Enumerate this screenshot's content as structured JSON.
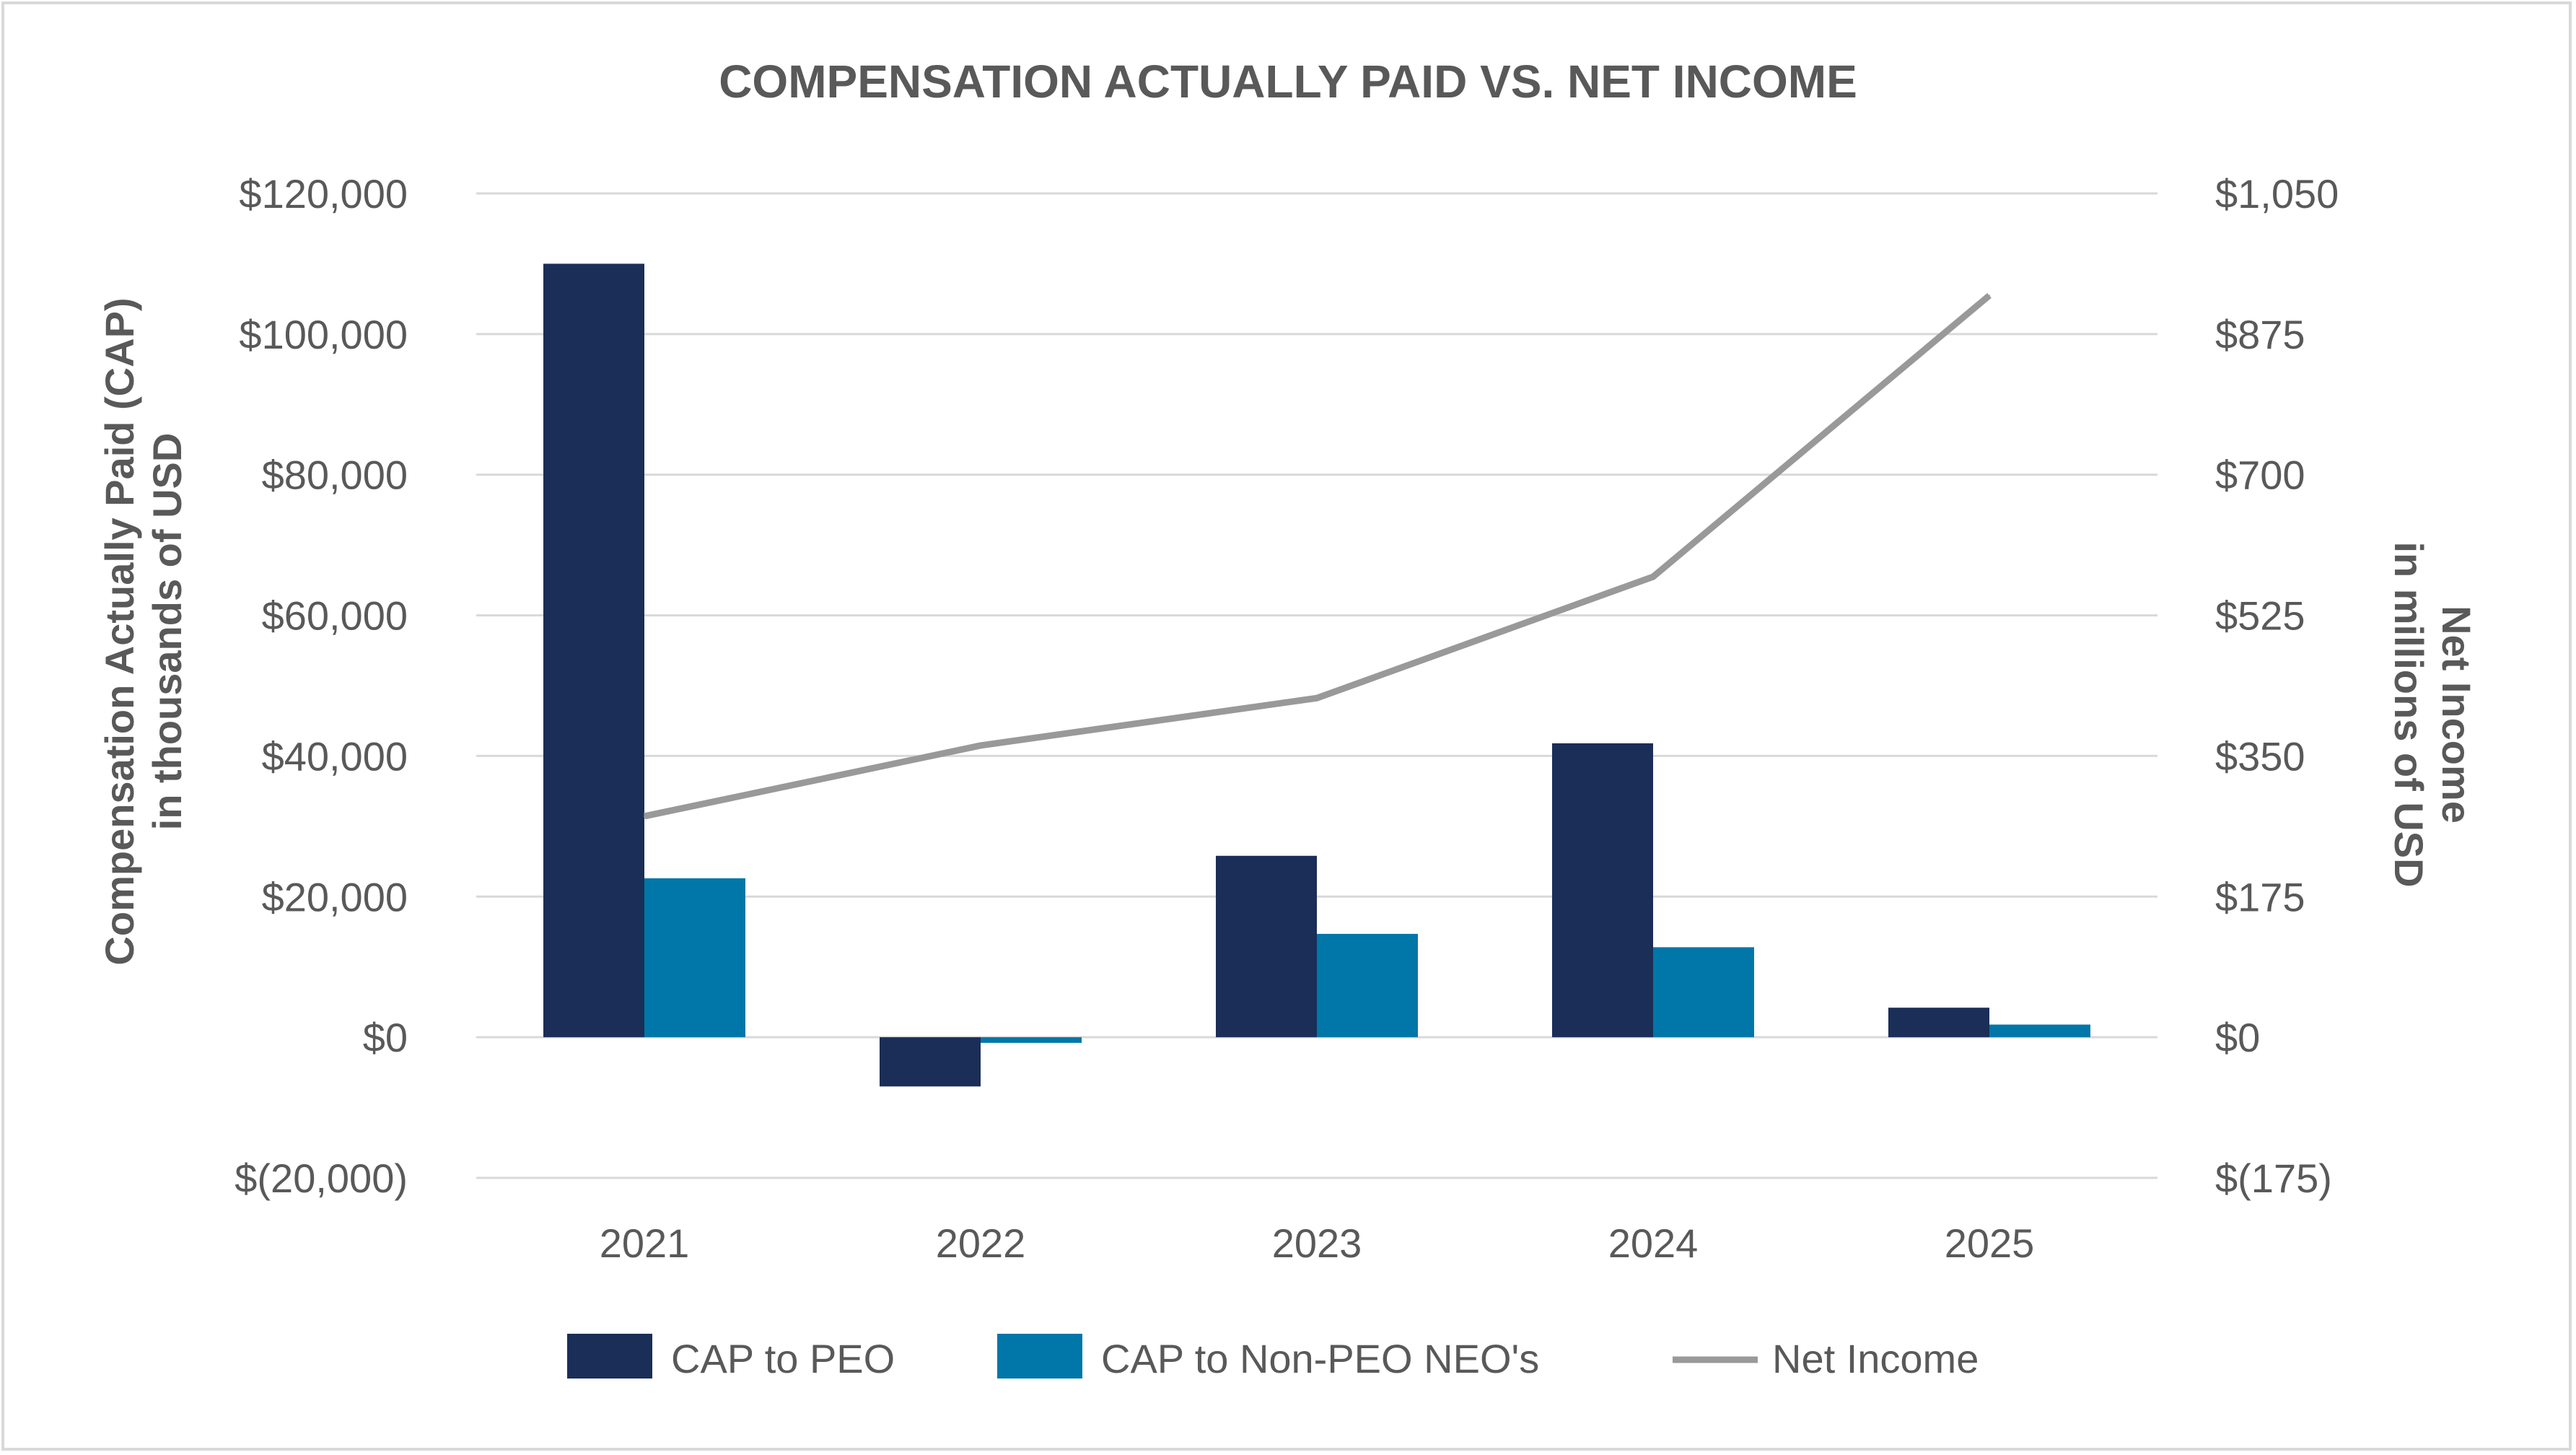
{
  "chart_data": {
    "type": "bar",
    "title": "COMPENSATION ACTUALLY PAID VS. NET INCOME",
    "categories": [
      "2021",
      "2022",
      "2023",
      "2024",
      "2025"
    ],
    "series": [
      {
        "name": "CAP to PEO",
        "axis": "left",
        "kind": "bar",
        "color": "#1a2e57",
        "values": [
          110000,
          -7000,
          25800,
          41800,
          4200
        ]
      },
      {
        "name": "CAP to Non-PEO NEO's",
        "axis": "left",
        "kind": "bar",
        "color": "#0077a8",
        "values": [
          22600,
          -800,
          14700,
          12800,
          1800
        ]
      },
      {
        "name": "Net Income",
        "axis": "right",
        "kind": "line",
        "color": "#999999",
        "values": [
          275,
          363,
          422,
          573,
          923
        ]
      }
    ],
    "ylabel": "Compensation Actually Paid (CAP)",
    "ylabel_sub": "in thousands of USD",
    "y2label": "Net Income",
    "y2label_sub": "in millions of USD",
    "ylim": [
      -20000,
      120000
    ],
    "y2lim": [
      -175,
      1050
    ],
    "yticks": [
      120000,
      100000,
      80000,
      60000,
      40000,
      20000,
      0,
      -20000
    ],
    "ytick_labels": [
      "$120,000",
      "$100,000",
      "$80,000",
      "$60,000",
      "$40,000",
      "$20,000",
      "$0",
      "$(20,000)"
    ],
    "y2ticks": [
      1050,
      875,
      700,
      525,
      350,
      175,
      0,
      -175
    ],
    "y2tick_labels": [
      "$1,050",
      "$875",
      "$700",
      "$525",
      "$350",
      "$175",
      "$0",
      "$(175)"
    ],
    "grid": true,
    "legend_position": "bottom",
    "legend": [
      "CAP to PEO",
      "CAP to Non-PEO NEO's",
      "Net Income"
    ]
  }
}
